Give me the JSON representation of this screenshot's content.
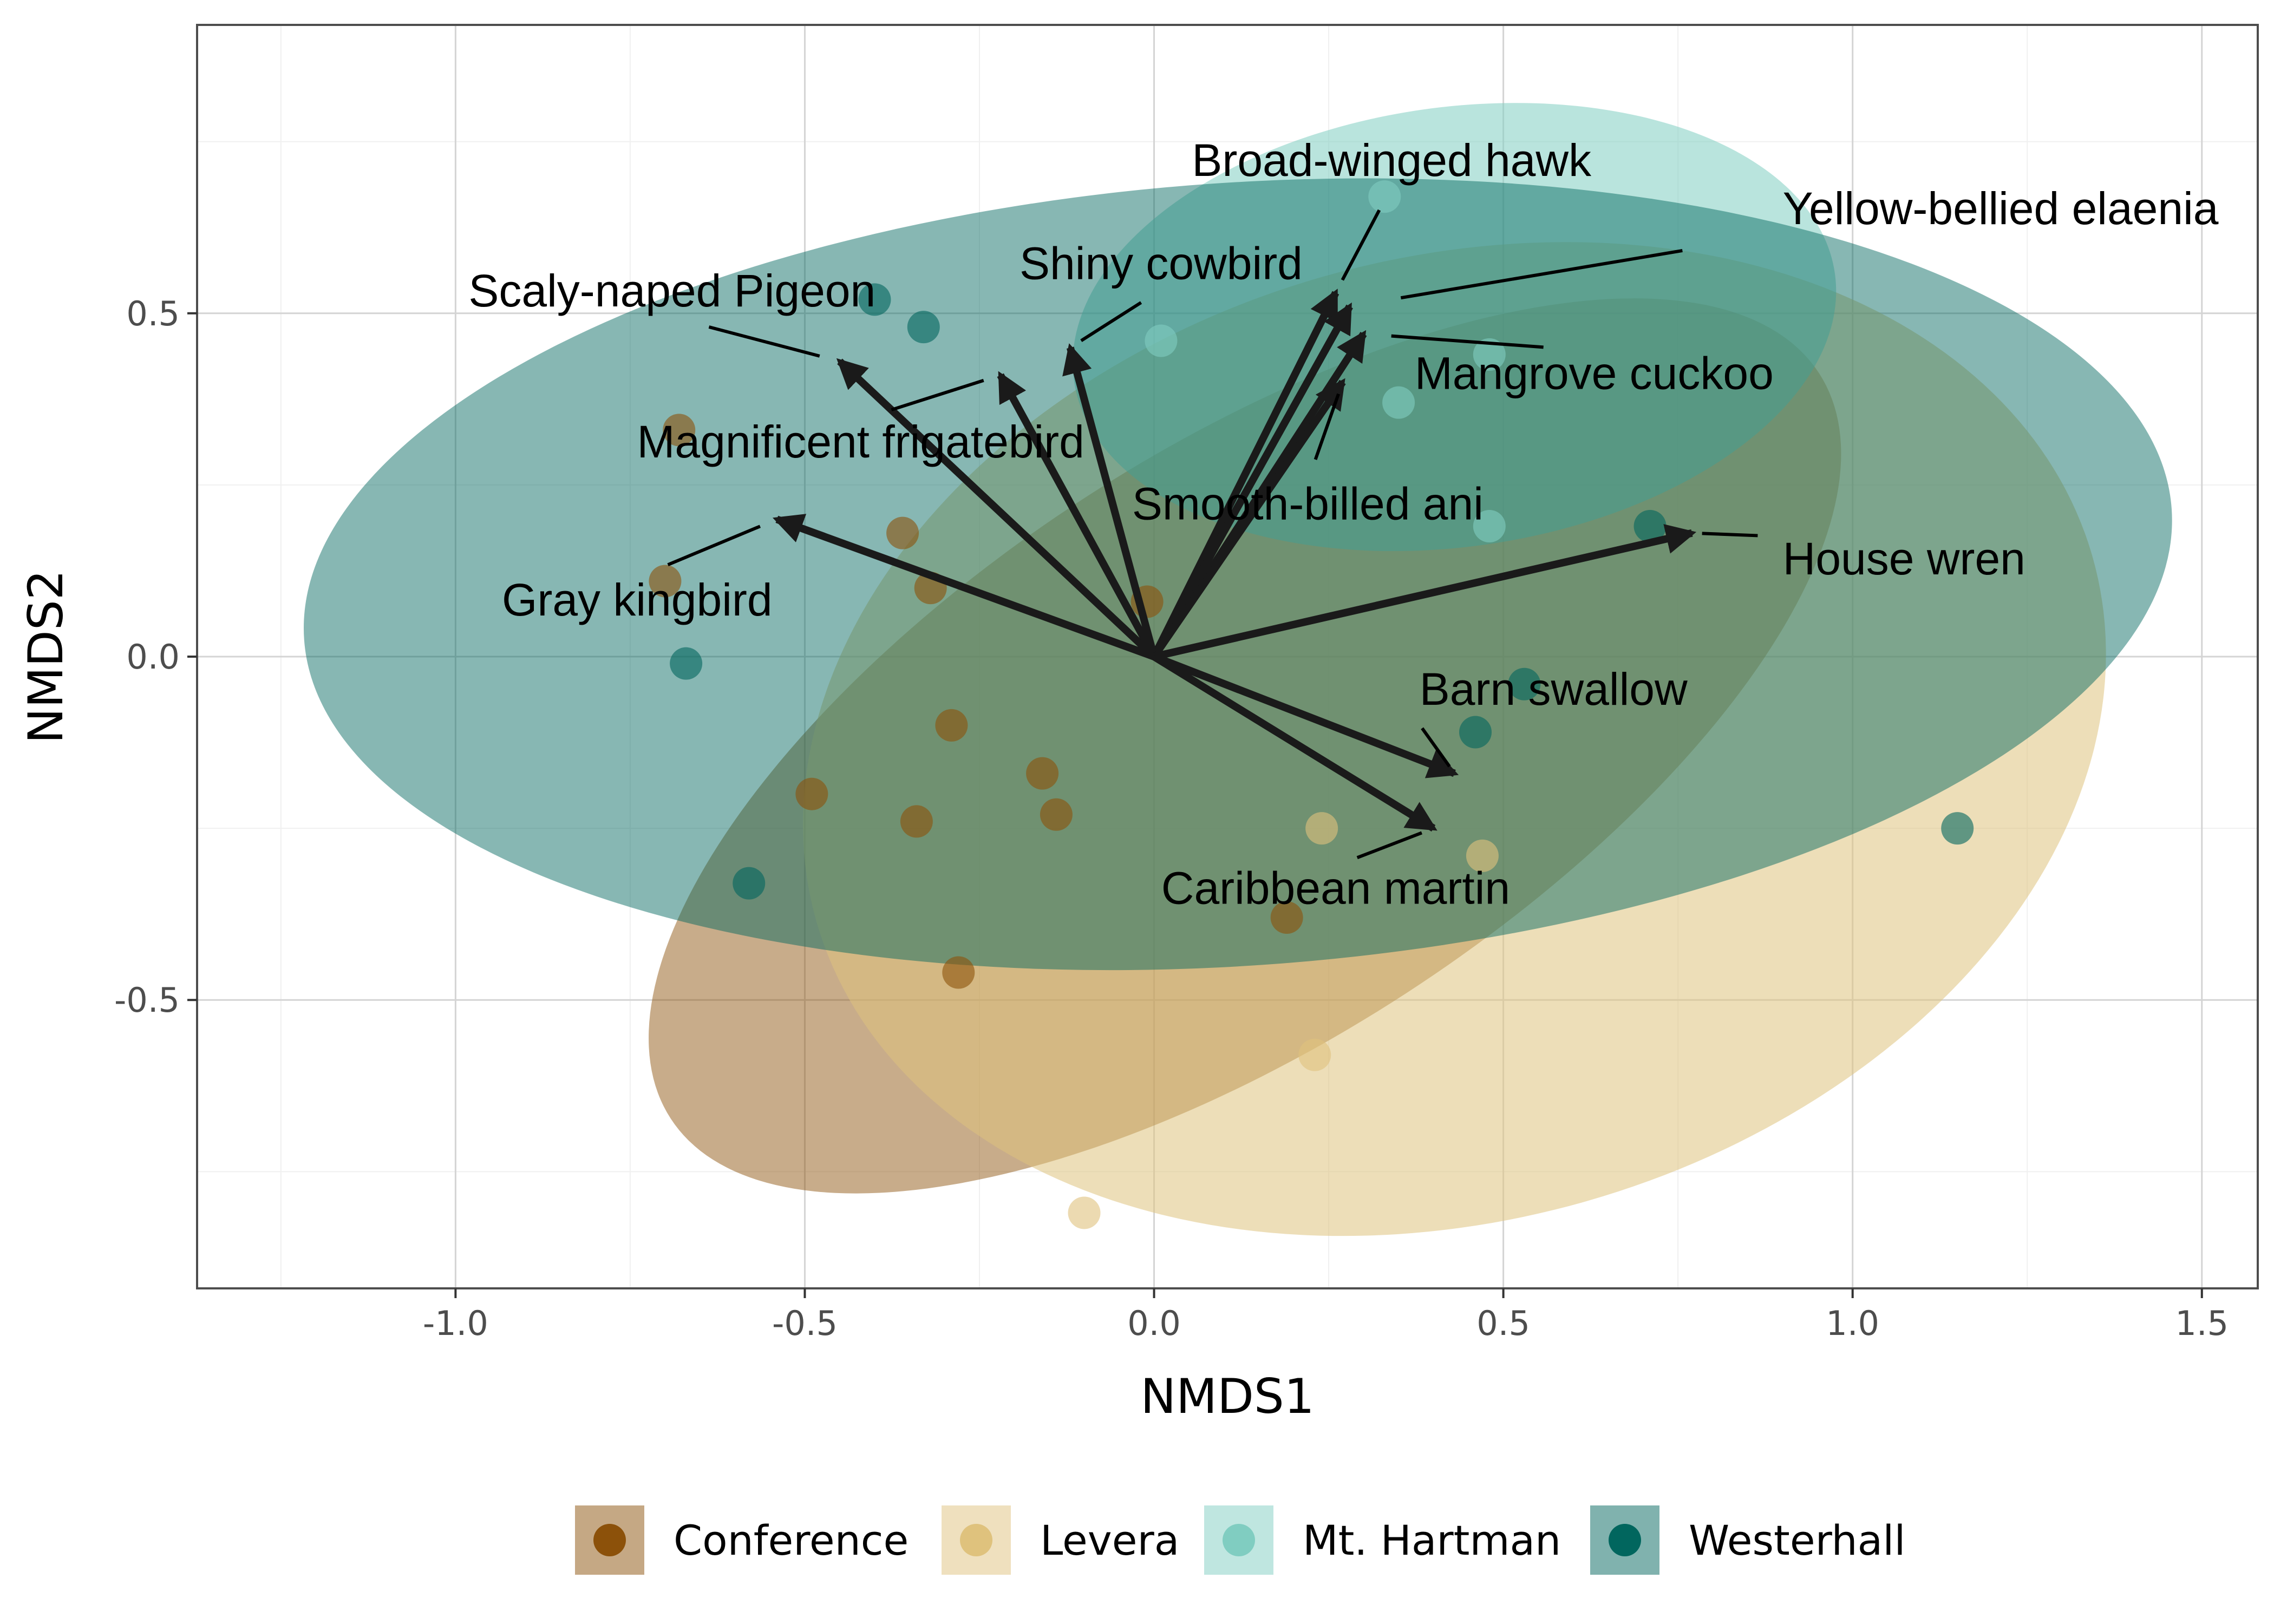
{
  "chart_data": {
    "type": "scatter",
    "xlabel": "NMDS1",
    "ylabel": "NMDS2",
    "xlim": [
      -1.37,
      1.58
    ],
    "ylim": [
      -0.92,
      0.92
    ],
    "x_ticks": [
      -1.0,
      -0.5,
      0.0,
      0.5,
      1.0,
      1.5
    ],
    "x_tick_labels": [
      "-1.0",
      "-0.5",
      "0.0",
      "0.5",
      "1.0",
      "1.5"
    ],
    "y_ticks": [
      -0.5,
      0.0,
      0.5
    ],
    "y_tick_labels": [
      "-0.5",
      "0.0",
      "0.5"
    ],
    "grid": true,
    "legend_position": "bottom",
    "series": [
      {
        "name": "Conference",
        "color": "#8c510a",
        "ellipse": {
          "cx": 0.13,
          "cy": -0.13,
          "rx": 0.98,
          "ry": 0.43,
          "angle_deg": -33
        },
        "points": [
          [
            -0.68,
            0.33
          ],
          [
            -0.36,
            0.18
          ],
          [
            -0.32,
            0.1
          ],
          [
            -0.01,
            0.08
          ],
          [
            -0.7,
            0.11
          ],
          [
            -0.29,
            -0.1
          ],
          [
            -0.16,
            -0.17
          ],
          [
            -0.14,
            -0.23
          ],
          [
            -0.49,
            -0.2
          ],
          [
            -0.34,
            -0.24
          ],
          [
            0.19,
            -0.38
          ],
          [
            -0.28,
            -0.46
          ]
        ]
      },
      {
        "name": "Levera",
        "color": "#dfc27d",
        "ellipse": {
          "cx": 0.43,
          "cy": -0.12,
          "rx": 0.95,
          "ry": 0.7,
          "angle_deg": -16
        },
        "points": [
          [
            0.23,
            -0.58
          ],
          [
            -0.1,
            -0.81
          ],
          [
            0.47,
            -0.29
          ],
          [
            0.24,
            -0.25
          ]
        ]
      },
      {
        "name": "Mt. Hartman",
        "color": "#80cdc1",
        "ellipse": {
          "cx": 0.43,
          "cy": 0.48,
          "rx": 0.55,
          "ry": 0.32,
          "angle_deg": -8
        },
        "points": [
          [
            0.33,
            0.67
          ],
          [
            0.01,
            0.46
          ],
          [
            0.48,
            0.44
          ],
          [
            0.35,
            0.37
          ],
          [
            0.48,
            0.19
          ]
        ]
      },
      {
        "name": "Westerhall",
        "color": "#01665e",
        "ellipse": {
          "cx": 0.12,
          "cy": 0.12,
          "rx": 1.34,
          "ry": 0.57,
          "angle_deg": -4
        },
        "points": [
          [
            -0.4,
            0.52
          ],
          [
            -0.33,
            0.48
          ],
          [
            -0.67,
            -0.01
          ],
          [
            -0.58,
            -0.33
          ],
          [
            0.46,
            -0.11
          ],
          [
            0.53,
            -0.04
          ],
          [
            0.71,
            0.19
          ],
          [
            1.15,
            -0.25
          ]
        ]
      }
    ],
    "vectors": [
      {
        "label": "Broad-winged hawk",
        "x": 0.26,
        "y": 0.53
      },
      {
        "label": "Yellow-bellied elaenia",
        "x": 0.28,
        "y": 0.51
      },
      {
        "label": "Mangrove cuckoo",
        "x": 0.3,
        "y": 0.47
      },
      {
        "label": "Smooth-billed ani",
        "x": 0.27,
        "y": 0.4
      },
      {
        "label": "Shiny cowbird",
        "x": -0.12,
        "y": 0.45
      },
      {
        "label": "Scaly-naped Pigeon",
        "x": -0.45,
        "y": 0.43
      },
      {
        "label": "Magnificent frigatebird",
        "x": -0.22,
        "y": 0.41
      },
      {
        "label": "Gray kingbird",
        "x": -0.54,
        "y": 0.2
      },
      {
        "label": "House wren",
        "x": 0.77,
        "y": 0.18
      },
      {
        "label": "Barn swallow",
        "x": 0.43,
        "y": -0.17
      },
      {
        "label": "Caribbean martin",
        "x": 0.4,
        "y": -0.25
      }
    ]
  },
  "legend": {
    "items": [
      {
        "label": "Conference",
        "color": "#8c510a"
      },
      {
        "label": "Levera",
        "color": "#dfc27d"
      },
      {
        "label": "Mt. Hartman",
        "color": "#80cdc1"
      },
      {
        "label": "Westerhall",
        "color": "#01665e"
      }
    ]
  }
}
